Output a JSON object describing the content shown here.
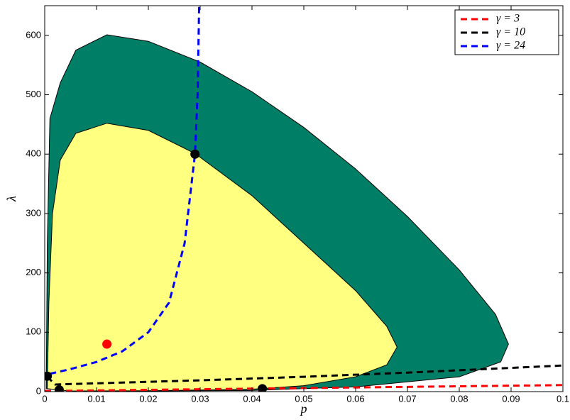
{
  "chart_data": {
    "type": "line",
    "xlabel": "p",
    "ylabel": "λ",
    "xlim": [
      0,
      0.1
    ],
    "ylim": [
      0,
      650
    ],
    "xticks": [
      0,
      0.01,
      0.02,
      0.03,
      0.04,
      0.05,
      0.06,
      0.07,
      0.08,
      0.09,
      0.1
    ],
    "yticks": [
      0,
      100,
      200,
      300,
      400,
      500,
      600
    ],
    "legend_position": "upper right",
    "regions": [
      {
        "color": "#007f66",
        "x": [
          0.0003,
          0.0005,
          0.001,
          0.003,
          0.006,
          0.012,
          0.02,
          0.03,
          0.04,
          0.05,
          0.06,
          0.07,
          0.08,
          0.087,
          0.0895,
          0.088,
          0.08,
          0.06,
          0.04,
          0.02,
          0.005
        ],
        "values": [
          5,
          250,
          460,
          520,
          575,
          601,
          590,
          555,
          505,
          445,
          375,
          295,
          205,
          130,
          80,
          50,
          25,
          8,
          2,
          1,
          1
        ]
      },
      {
        "color": "#ffff80",
        "x": [
          0.0005,
          0.0008,
          0.0015,
          0.003,
          0.006,
          0.012,
          0.02,
          0.029,
          0.04,
          0.05,
          0.06,
          0.066,
          0.068,
          0.066,
          0.06,
          0.05,
          0.04,
          0.02,
          0.005
        ],
        "values": [
          5,
          150,
          300,
          390,
          435,
          452,
          440,
          401,
          330,
          250,
          170,
          110,
          75,
          45,
          25,
          10,
          4,
          1.5,
          1
        ]
      }
    ],
    "series": [
      {
        "name": "γ = 3",
        "color": "#ff0000",
        "linestyle": "dashed",
        "x": [
          0,
          0.1
        ],
        "values": [
          1,
          11
        ]
      },
      {
        "name": "γ = 10",
        "color": "#000000",
        "linestyle": "dashed",
        "x": [
          0.0005,
          0.002,
          0.01,
          0.03,
          0.05,
          0.07,
          0.1
        ],
        "values": [
          25,
          12,
          14,
          19,
          25,
          32,
          44
        ]
      },
      {
        "name": "γ = 24",
        "color": "#0000ff",
        "linestyle": "dashed",
        "x": [
          0.001,
          0.005,
          0.01,
          0.015,
          0.02,
          0.024,
          0.027,
          0.029,
          0.0295,
          0.0298
        ],
        "values": [
          30,
          38,
          50,
          68,
          100,
          150,
          250,
          400,
          500,
          650
        ]
      }
    ],
    "points": [
      {
        "color": "#000000",
        "x": [
          0.0005,
          0.0028,
          0.042,
          0.029
        ],
        "values": [
          26,
          3,
          5,
          400
        ]
      },
      {
        "color": "#ff0000",
        "x": [
          0.012
        ],
        "values": [
          80
        ]
      }
    ]
  }
}
